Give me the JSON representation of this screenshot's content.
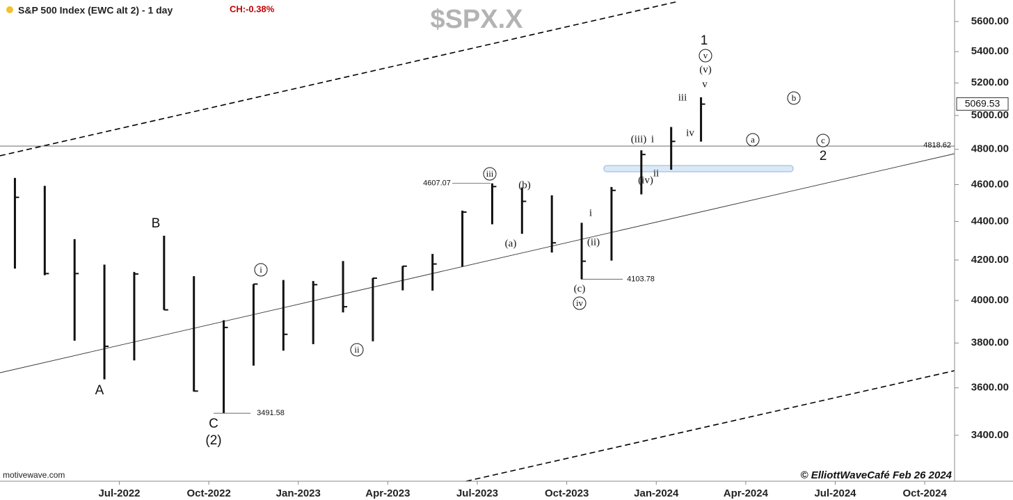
{
  "chart_data": {
    "type": "hlc",
    "title": "S&P 500 Index (EWC alt 2) - 1 day",
    "change_label": "CH:-0.38%",
    "symbol": "$SPX.X",
    "x": [
      "2022-03",
      "2022-04",
      "2022-05",
      "2022-06",
      "2022-07",
      "2022-08",
      "2022-09",
      "2022-10",
      "2022-11",
      "2022-12",
      "2023-01",
      "2023-02",
      "2023-03",
      "2023-04",
      "2023-05",
      "2023-06",
      "2023-07",
      "2023-08",
      "2023-09",
      "2023-10",
      "2023-11",
      "2023-12",
      "2024-01",
      "2024-02"
    ],
    "high": [
      4637,
      4593,
      4307,
      4177,
      4140,
      4325,
      4119,
      3906,
      4080,
      4100,
      4095,
      4195,
      4110,
      4170,
      4231,
      4458,
      4607,
      4584,
      4541,
      4393,
      4587,
      4794,
      4931,
      5111
    ],
    "low": [
      4157,
      4124,
      3811,
      3637,
      3721,
      3955,
      3584,
      3492,
      3698,
      3765,
      3795,
      3943,
      3808,
      4049,
      4048,
      4166,
      4385,
      4335,
      4238,
      4104,
      4197,
      4546,
      4683,
      4845
    ],
    "close": [
      4530,
      4132,
      4132,
      3785,
      4130,
      3955,
      3586,
      3872,
      4080,
      3840,
      4077,
      3970,
      4109,
      4169,
      4180,
      4450,
      4589,
      4508,
      4288,
      4194,
      4568,
      4770,
      4846,
      5069
    ],
    "color": "#111111",
    "log_scale": true,
    "xlim": [
      "2022-03",
      "2024-11"
    ],
    "xticks": [
      {
        "value": "2022-07",
        "label": "Jul-2022"
      },
      {
        "value": "2022-10",
        "label": "Oct-2022"
      },
      {
        "value": "2023-01",
        "label": "Jan-2023"
      },
      {
        "value": "2023-04",
        "label": "Apr-2023"
      },
      {
        "value": "2023-07",
        "label": "Jul-2023"
      },
      {
        "value": "2023-10",
        "label": "Oct-2023"
      },
      {
        "value": "2024-01",
        "label": "Jan-2024"
      },
      {
        "value": "2024-04",
        "label": "Apr-2024"
      },
      {
        "value": "2024-07",
        "label": "Jul-2024"
      },
      {
        "value": "2024-10",
        "label": "Oct-2024"
      }
    ],
    "ylim": [
      3222,
      5747
    ],
    "yticks": [
      {
        "value": 3400,
        "label": "3400.00"
      },
      {
        "value": 3600,
        "label": "3600.00"
      },
      {
        "value": 3800,
        "label": "3800.00"
      },
      {
        "value": 4000,
        "label": "4000.00"
      },
      {
        "value": 4200,
        "label": "4200.00"
      },
      {
        "value": 4400,
        "label": "4400.00"
      },
      {
        "value": 4600,
        "label": "4600.00"
      },
      {
        "value": 4800,
        "label": "4800.00"
      },
      {
        "value": 5000,
        "label": "5000.00"
      },
      {
        "value": 5200,
        "label": "5200.00"
      },
      {
        "value": 5400,
        "label": "5400.00"
      },
      {
        "value": 5600,
        "label": "5600.00"
      }
    ],
    "price_labels": [
      4607.07,
      4103.78,
      3491.58
    ],
    "level_line": 4818.62,
    "last_price": 5069.53,
    "wave_labels": [
      "1",
      "v",
      "(v)",
      "v",
      "iii",
      "iv",
      "i",
      "(iii)",
      "ii",
      "(iv)",
      "b",
      "a",
      "c",
      "2",
      "iii",
      "(b)",
      "(a)",
      "i",
      "(ii)",
      "(c)",
      "iv",
      "i",
      "ii",
      "B",
      "A",
      "C",
      "(2)"
    ],
    "source": "motivewave.com",
    "credit": "© ElliottWaveCafé Feb 26 2024"
  }
}
